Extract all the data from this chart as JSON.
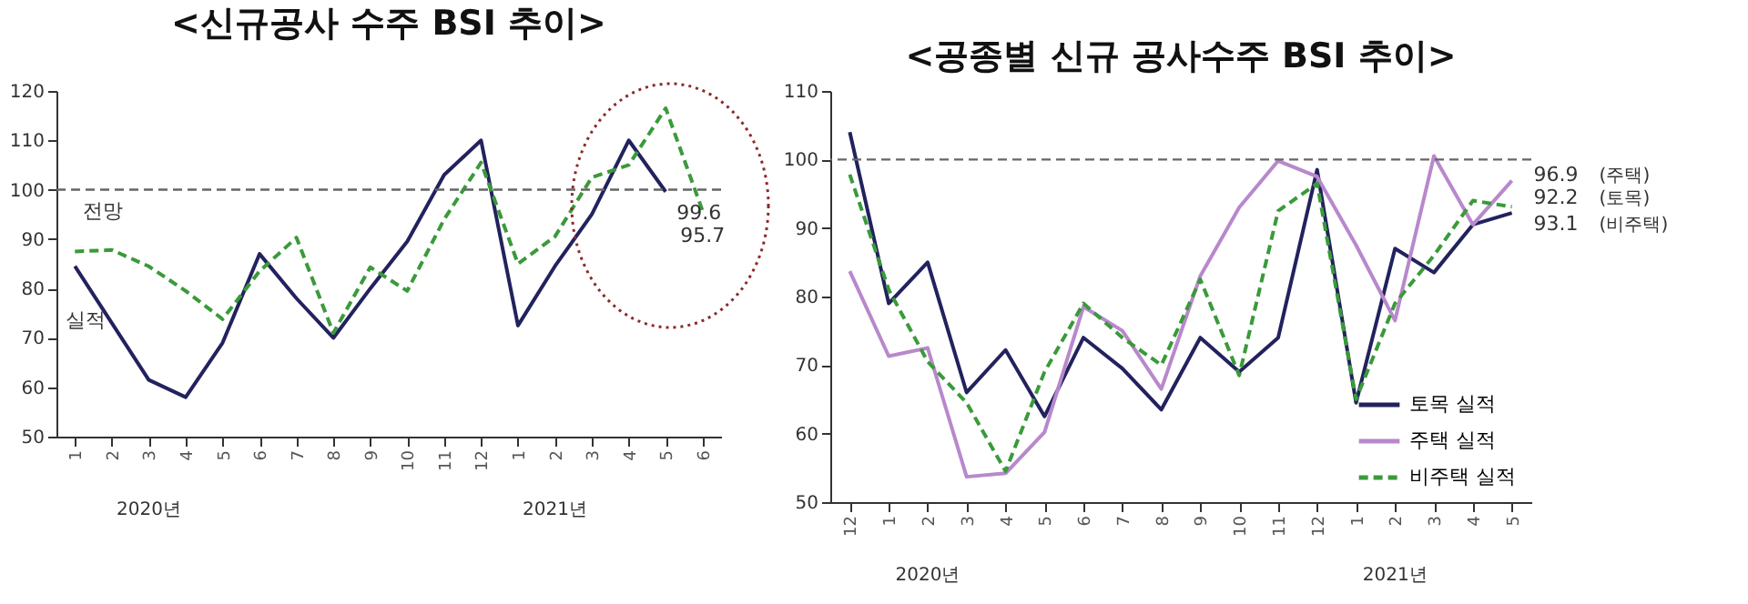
{
  "chart_data": [
    {
      "type": "line",
      "title": "<신규공사 수주 BSI 추이>",
      "categories": [
        "1",
        "2",
        "3",
        "4",
        "5",
        "6",
        "7",
        "8",
        "9",
        "10",
        "11",
        "12",
        "1",
        "2",
        "3",
        "4",
        "5",
        "6"
      ],
      "series": [
        {
          "name": "실적",
          "color": "#22225e",
          "line_style": "solid",
          "values": [
            84.5,
            73,
            61.5,
            58,
            69,
            87,
            78,
            70,
            80,
            89.5,
            103,
            110,
            72.5,
            84.5,
            95,
            110,
            99.6,
            null
          ],
          "value_labels": [
            null,
            null,
            null,
            null,
            null,
            null,
            null,
            null,
            null,
            null,
            null,
            null,
            null,
            null,
            null,
            null,
            "99.6",
            null
          ]
        },
        {
          "name": "전망",
          "color": "#3a9a3a",
          "line_style": "dashed",
          "values": [
            87.5,
            87.8,
            84.5,
            79.5,
            73.8,
            83.5,
            90.3,
            71,
            84.3,
            79.5,
            94,
            105.5,
            85,
            90.5,
            102.5,
            105,
            116.5,
            95.7
          ],
          "value_labels": [
            null,
            null,
            null,
            null,
            null,
            null,
            null,
            null,
            null,
            null,
            null,
            null,
            null,
            null,
            null,
            null,
            null,
            "95.7"
          ]
        }
      ],
      "ylim": [
        50,
        120
      ],
      "yticks": [
        50,
        60,
        70,
        80,
        90,
        100,
        110,
        120
      ],
      "ref_lines": [
        {
          "axis": "y",
          "value": 100,
          "color": "#666666",
          "line_style": "dashed"
        }
      ],
      "annotations": [
        "2020년",
        "2021년"
      ],
      "legend": false,
      "grid": false
    },
    {
      "type": "line",
      "title": "<공종별 신규 공사수주 BSI 추이>",
      "categories": [
        "12",
        "1",
        "2",
        "3",
        "4",
        "5",
        "6",
        "7",
        "8",
        "9",
        "10",
        "11",
        "12",
        "1",
        "2",
        "3",
        "4",
        "5"
      ],
      "series": [
        {
          "name": "토목 실적",
          "color": "#22225e",
          "line_style": "solid",
          "values": [
            104,
            79,
            85,
            66,
            72.2,
            62.5,
            74,
            69.5,
            63.5,
            74,
            69,
            74,
            98.5,
            64.5,
            87,
            83.5,
            90.5,
            92.2
          ],
          "value_labels": [
            null,
            null,
            null,
            null,
            null,
            null,
            null,
            null,
            null,
            null,
            null,
            null,
            null,
            null,
            null,
            null,
            null,
            "92.2"
          ]
        },
        {
          "name": "주택 실적",
          "color": "#b888cc",
          "line_style": "solid",
          "values": [
            83.7,
            71.3,
            72.5,
            53.7,
            54.2,
            60.2,
            78.5,
            75,
            66.5,
            83,
            93,
            99.8,
            97.5,
            87.5,
            76.5,
            100.5,
            90.5,
            96.9
          ],
          "value_labels": [
            null,
            null,
            null,
            null,
            null,
            null,
            null,
            null,
            null,
            null,
            null,
            null,
            null,
            null,
            null,
            null,
            null,
            "96.9"
          ]
        },
        {
          "name": "비주택 실적",
          "color": "#3a9a3a",
          "line_style": "dashed",
          "values": [
            97.8,
            81,
            70.5,
            64.5,
            54.5,
            69,
            79,
            74,
            70,
            82.5,
            68.5,
            92.5,
            96.5,
            65,
            79,
            86,
            94,
            93.1
          ],
          "value_labels": [
            null,
            null,
            null,
            null,
            null,
            null,
            null,
            null,
            null,
            null,
            null,
            null,
            null,
            null,
            null,
            null,
            null,
            "93.1"
          ]
        }
      ],
      "ylim": [
        50,
        110
      ],
      "yticks": [
        50,
        60,
        70,
        80,
        90,
        100,
        110
      ],
      "ref_lines": [
        {
          "axis": "y",
          "value": 100,
          "color": "#666666",
          "line_style": "dashed"
        }
      ],
      "annotations": [
        "2020년",
        "2021년",
        "(주택)",
        "(토목)",
        "(비주택)"
      ],
      "legend": "bottom right",
      "grid": false
    }
  ]
}
